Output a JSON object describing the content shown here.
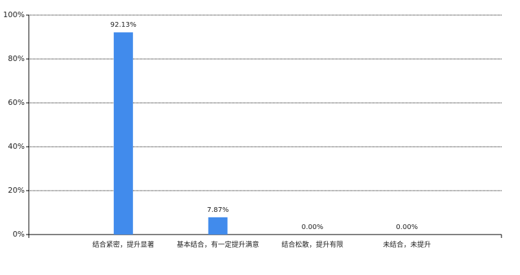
{
  "chart_data": {
    "type": "bar",
    "categories": [
      "结合紧密，提升显著",
      "基本结合，有一定提升满意",
      "结合松散，提升有限",
      "未结合，未提升"
    ],
    "values": [
      92.13,
      7.87,
      0,
      0
    ],
    "value_labels": [
      "92.13%",
      "7.87%",
      "0.00%",
      "0.00%"
    ],
    "color": "#418bec",
    "ylim": [
      0,
      100
    ],
    "yticks": [
      {
        "value": 0,
        "label": "0%"
      },
      {
        "value": 20,
        "label": "20%"
      },
      {
        "value": 40,
        "label": "40%"
      },
      {
        "value": 60,
        "label": "60%"
      },
      {
        "value": 80,
        "label": "80%"
      },
      {
        "value": 100,
        "label": "100%"
      }
    ],
    "grid": true
  }
}
